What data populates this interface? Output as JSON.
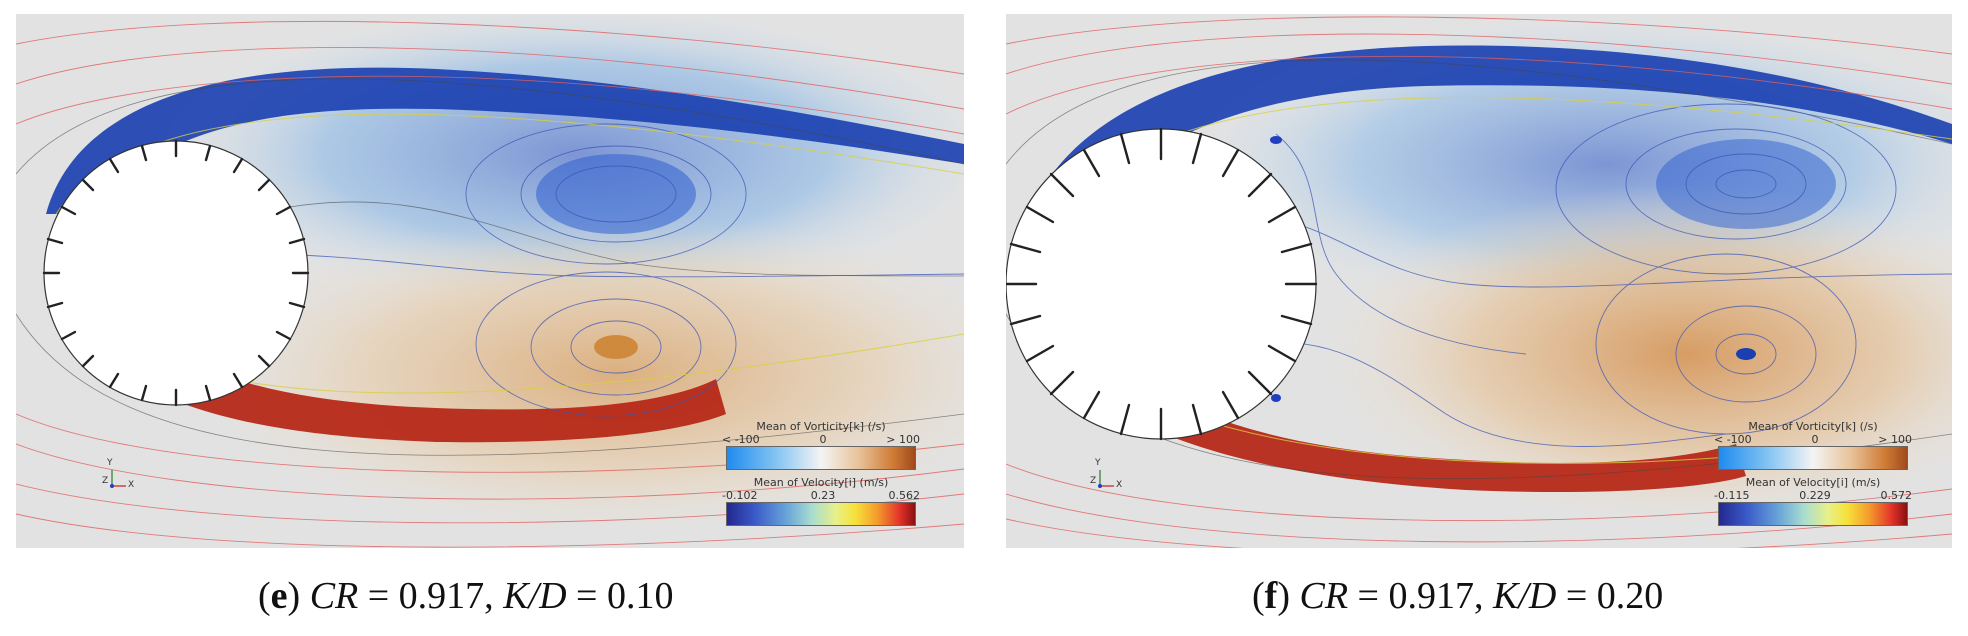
{
  "panels": [
    {
      "id": "e",
      "caption": {
        "open": "(",
        "letter": "e",
        "close": ")",
        "cr_label": "CR",
        "cr_value": " = 0.917, ",
        "kd_label": "K/D",
        "kd_value": " = 0.10"
      },
      "vorticity_legend": {
        "title": "Mean of Vorticity[k] (/s)",
        "min": "< -100",
        "mid": "0",
        "max": "> 100"
      },
      "velocity_legend": {
        "title": "Mean of Velocity[i] (m/s)",
        "min": "-0.102",
        "mid": "0.23",
        "max": "0.562"
      },
      "axes": {
        "y": "Y",
        "z": "Z",
        "x": "X"
      }
    },
    {
      "id": "f",
      "caption": {
        "open": "(",
        "letter": "f",
        "close": ")",
        "cr_label": "CR",
        "cr_value": " = 0.917, ",
        "kd_label": "K/D",
        "kd_value": " = 0.20"
      },
      "vorticity_legend": {
        "title": "Mean of Vorticity[k] (/s)",
        "min": "< -100",
        "mid": "0",
        "max": "> 100"
      },
      "velocity_legend": {
        "title": "Mean of Velocity[i] (m/s)",
        "min": "-0.115",
        "mid": "0.229",
        "max": "0.572"
      },
      "axes": {
        "y": "Y",
        "z": "Z",
        "x": "X"
      }
    }
  ]
}
